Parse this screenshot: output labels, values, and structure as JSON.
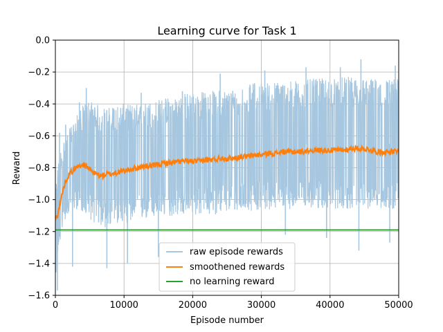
{
  "chart_data": {
    "type": "line",
    "title": "Learning curve for Task 1",
    "xlabel": "Episode number",
    "ylabel": "Reward",
    "xlim": [
      0,
      50000
    ],
    "ylim": [
      -1.6,
      0.0
    ],
    "xticks": [
      0,
      10000,
      20000,
      30000,
      40000,
      50000
    ],
    "xtick_labels": [
      "0",
      "10000",
      "20000",
      "30000",
      "40000",
      "50000"
    ],
    "yticks": [
      0.0,
      -0.2,
      -0.4,
      -0.6,
      -0.8,
      -1.0,
      -1.2,
      -1.4,
      -1.6
    ],
    "ytick_labels": [
      "0.0",
      "−0.2",
      "−0.4",
      "−0.6",
      "−0.8",
      "−1.0",
      "−1.2",
      "−1.4",
      "−1.6"
    ],
    "grid": true,
    "legend_position": "bottom-center",
    "series": [
      {
        "name": "raw episode rewards",
        "color": "#a6c7df",
        "envelope": {
          "x": [
            0,
            300,
            600,
            1000,
            1500,
            2000,
            3000,
            4000,
            5000,
            6000,
            7000,
            8000,
            9000,
            10000,
            12000,
            14000,
            16000,
            18000,
            20000,
            22000,
            24000,
            26000,
            28000,
            30000,
            32000,
            34000,
            36000,
            38000,
            40000,
            42000,
            44000,
            46000,
            48000,
            50000
          ],
          "upper": [
            -0.95,
            -0.8,
            -0.72,
            -0.65,
            -0.6,
            -0.56,
            -0.48,
            -0.41,
            -0.37,
            -0.4,
            -0.42,
            -0.42,
            -0.4,
            -0.4,
            -0.4,
            -0.38,
            -0.36,
            -0.34,
            -0.32,
            -0.32,
            -0.31,
            -0.3,
            -0.28,
            -0.26,
            -0.26,
            -0.25,
            -0.25,
            -0.24,
            -0.24,
            -0.23,
            -0.23,
            -0.24,
            -0.24,
            -0.24
          ],
          "lower": [
            -1.5,
            -1.42,
            -1.3,
            -1.18,
            -1.12,
            -1.08,
            -1.06,
            -1.08,
            -1.12,
            -1.16,
            -1.18,
            -1.18,
            -1.15,
            -1.15,
            -1.14,
            -1.12,
            -1.11,
            -1.1,
            -1.1,
            -1.1,
            -1.09,
            -1.08,
            -1.07,
            -1.07,
            -1.06,
            -1.06,
            -1.06,
            -1.06,
            -1.06,
            -1.06,
            -1.06,
            -1.06,
            -1.06,
            -1.06
          ]
        },
        "spikes": [
          {
            "x": 300,
            "y": -1.57
          },
          {
            "x": 600,
            "y": -0.58
          },
          {
            "x": 1500,
            "y": -0.53
          },
          {
            "x": 2500,
            "y": -1.42
          },
          {
            "x": 3500,
            "y": -0.39
          },
          {
            "x": 4500,
            "y": -0.3
          },
          {
            "x": 7500,
            "y": -1.43
          },
          {
            "x": 8500,
            "y": -0.43
          },
          {
            "x": 10500,
            "y": -1.4
          },
          {
            "x": 12500,
            "y": -0.33
          },
          {
            "x": 15000,
            "y": -1.36
          },
          {
            "x": 18500,
            "y": -0.32
          },
          {
            "x": 24000,
            "y": -0.21
          },
          {
            "x": 29000,
            "y": -0.27
          },
          {
            "x": 30500,
            "y": -0.19
          },
          {
            "x": 33500,
            "y": -1.22
          },
          {
            "x": 36500,
            "y": -0.17
          },
          {
            "x": 39500,
            "y": -1.24
          },
          {
            "x": 41500,
            "y": -0.17
          },
          {
            "x": 44500,
            "y": -0.12
          },
          {
            "x": 44200,
            "y": -1.32
          },
          {
            "x": 48700,
            "y": -1.27
          },
          {
            "x": 49500,
            "y": -0.16
          }
        ]
      },
      {
        "name": "smoothened rewards",
        "color": "#ff7f0e",
        "x": [
          0,
          300,
          600,
          1000,
          1500,
          2000,
          2500,
          3000,
          3500,
          4000,
          4500,
          5000,
          5500,
          6000,
          6500,
          7000,
          7500,
          8000,
          9000,
          10000,
          11000,
          12000,
          13000,
          14000,
          15000,
          16000,
          17000,
          18000,
          19000,
          20000,
          21000,
          22000,
          23000,
          24000,
          25000,
          26000,
          27000,
          28000,
          29000,
          30000,
          31000,
          32000,
          33000,
          34000,
          35000,
          36000,
          37000,
          38000,
          39000,
          40000,
          41000,
          42000,
          43000,
          44000,
          45000,
          46000,
          47000,
          48000,
          49000,
          50000
        ],
        "y": [
          -1.12,
          -1.1,
          -1.04,
          -0.96,
          -0.88,
          -0.84,
          -0.82,
          -0.8,
          -0.79,
          -0.78,
          -0.79,
          -0.81,
          -0.83,
          -0.84,
          -0.85,
          -0.85,
          -0.84,
          -0.84,
          -0.83,
          -0.82,
          -0.81,
          -0.8,
          -0.79,
          -0.79,
          -0.78,
          -0.77,
          -0.77,
          -0.76,
          -0.76,
          -0.76,
          -0.76,
          -0.75,
          -0.75,
          -0.74,
          -0.74,
          -0.74,
          -0.73,
          -0.73,
          -0.72,
          -0.72,
          -0.71,
          -0.71,
          -0.7,
          -0.7,
          -0.7,
          -0.7,
          -0.69,
          -0.69,
          -0.69,
          -0.69,
          -0.69,
          -0.69,
          -0.68,
          -0.68,
          -0.68,
          -0.69,
          -0.7,
          -0.7,
          -0.7,
          -0.7
        ]
      },
      {
        "name": "no learning reward",
        "color": "#2ca02c",
        "x": [
          0,
          50000
        ],
        "y": [
          -1.19,
          -1.19
        ]
      }
    ]
  }
}
